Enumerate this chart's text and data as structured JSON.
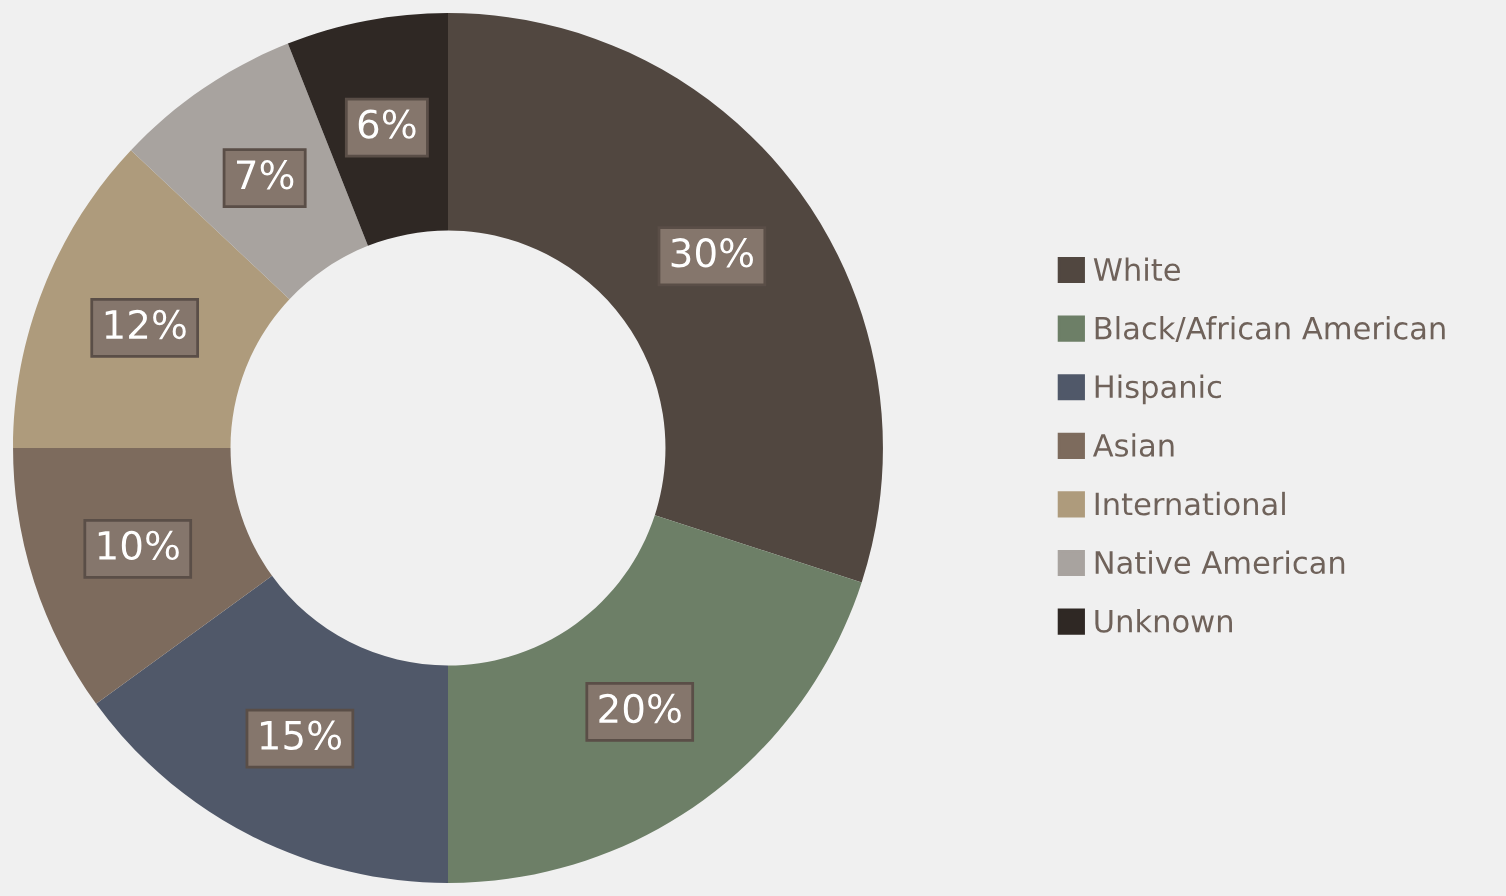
{
  "chart_data": {
    "type": "donut",
    "categories": [
      "White",
      "Black/African American",
      "Hispanic",
      "Asian",
      "International",
      "Native American",
      "Unknown"
    ],
    "values": [
      30,
      20,
      15,
      10,
      12,
      7,
      6
    ],
    "value_labels": [
      "30%",
      "20%",
      "15%",
      "10%",
      "12%",
      "7%",
      "6%"
    ],
    "colors": [
      "#514740",
      "#6d7f67",
      "#505869",
      "#7d6b5d",
      "#ae9b7c",
      "#a8a39f",
      "#2f2824"
    ],
    "legend": "right"
  }
}
